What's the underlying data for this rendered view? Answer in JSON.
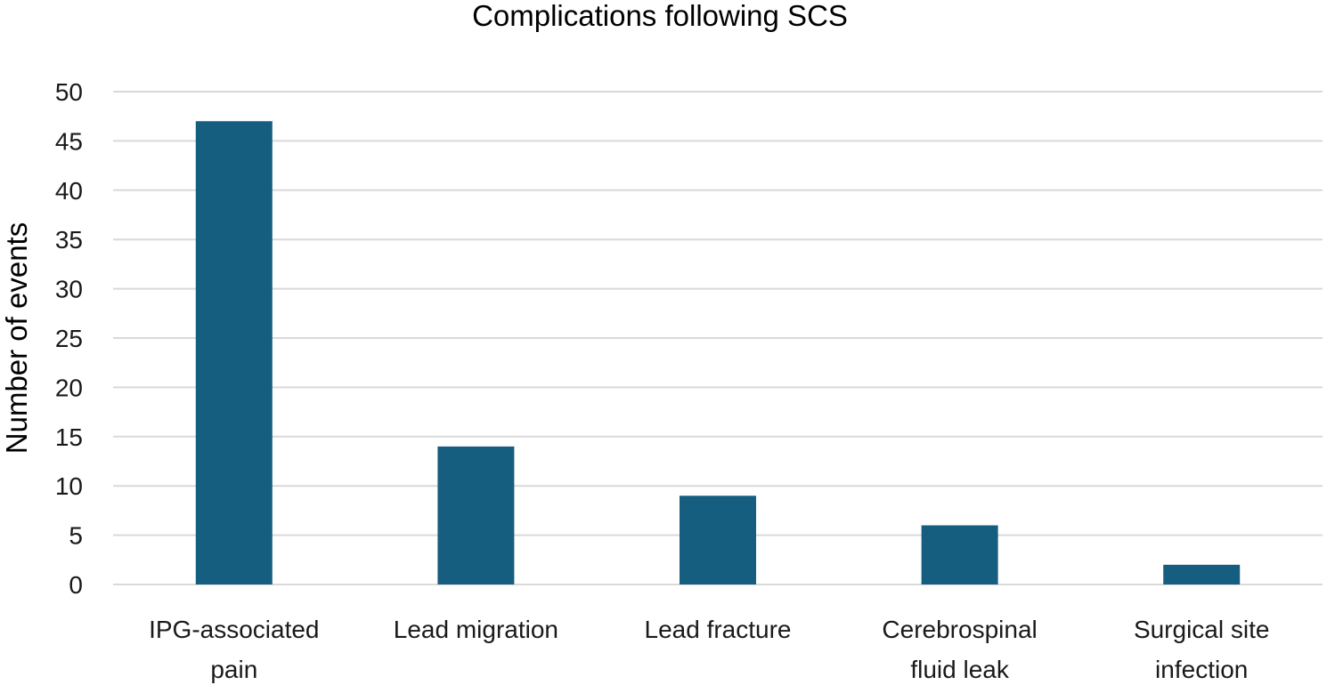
{
  "chart_data": {
    "type": "bar",
    "title": "Complications following SCS",
    "xlabel": "",
    "ylabel": "Number of events",
    "categories": [
      [
        "IPG-associated",
        "pain"
      ],
      [
        "Lead migration"
      ],
      [
        "Lead fracture"
      ],
      [
        "Cerebrospinal",
        "fluid leak"
      ],
      [
        "Surgical site",
        "infection"
      ]
    ],
    "values": [
      47,
      14,
      9,
      6,
      2
    ],
    "ylim": [
      0,
      50
    ],
    "yticks": [
      0,
      5,
      10,
      15,
      20,
      25,
      30,
      35,
      40,
      45,
      50
    ],
    "grid": true,
    "legend": "none",
    "colors": {
      "bar": "#165e80",
      "grid": "#d9d9d9"
    }
  }
}
